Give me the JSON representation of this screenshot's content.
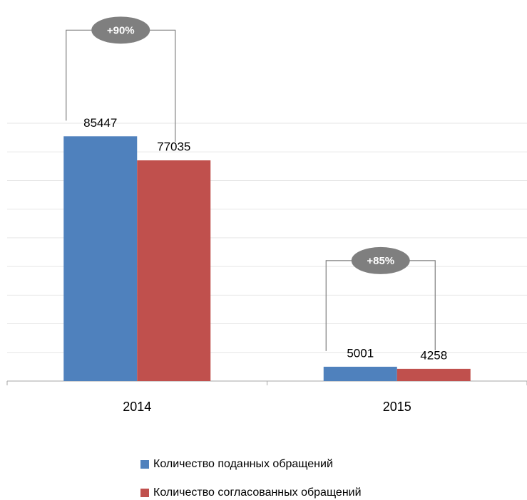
{
  "chart_data": {
    "type": "bar",
    "categories": [
      "2014",
      "2015"
    ],
    "series": [
      {
        "name": "Количество поданных обращений",
        "color": "#4f81bd",
        "values": [
          85447,
          5001
        ]
      },
      {
        "name": "Количество согласованных обращений",
        "color": "#c0504d",
        "values": [
          77035,
          4258
        ]
      }
    ],
    "annotations": [
      "+90%",
      "+85%"
    ],
    "ylim": [
      0,
      90000
    ],
    "yticks": [
      0,
      10000,
      20000,
      30000,
      40000,
      50000,
      60000,
      70000,
      80000,
      90000
    ],
    "grid": true,
    "legend": "bottom"
  }
}
